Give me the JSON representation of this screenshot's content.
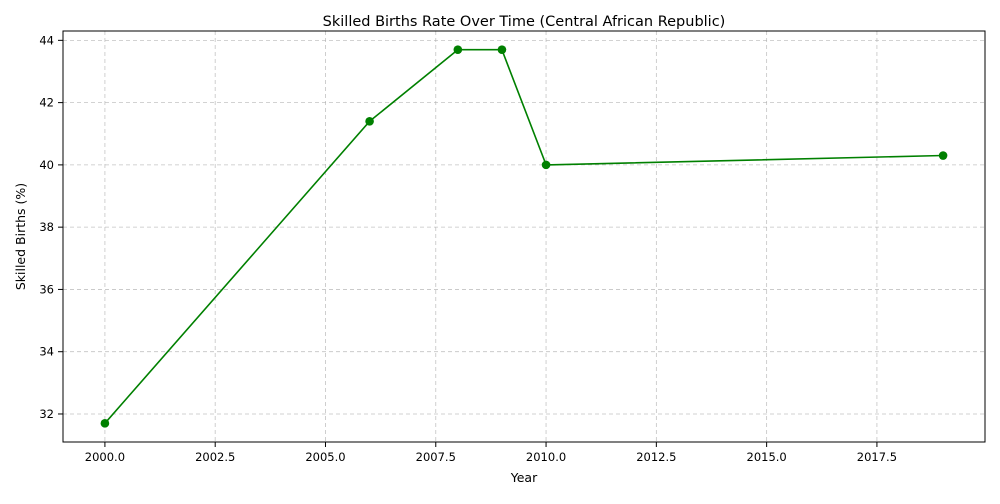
{
  "chart_data": {
    "type": "line",
    "title": "Skilled Births Rate Over Time (Central African Republic)",
    "xlabel": "Year",
    "ylabel": "Skilled Births (%)",
    "xlim": [
      1999.05,
      2019.95
    ],
    "ylim": [
      31.1,
      44.3
    ],
    "xticks": [
      "2000.0",
      "2002.5",
      "2005.0",
      "2007.5",
      "2010.0",
      "2012.5",
      "2015.0",
      "2017.5"
    ],
    "yticks": [
      "32",
      "34",
      "36",
      "38",
      "40",
      "42",
      "44"
    ],
    "grid": true,
    "series": [
      {
        "x": [
          2000,
          2006,
          2008,
          2009,
          2010,
          2019
        ],
        "y": [
          31.7,
          41.4,
          43.7,
          43.7,
          40.0,
          40.3
        ],
        "color": "#008000",
        "marker": "circle"
      }
    ]
  }
}
